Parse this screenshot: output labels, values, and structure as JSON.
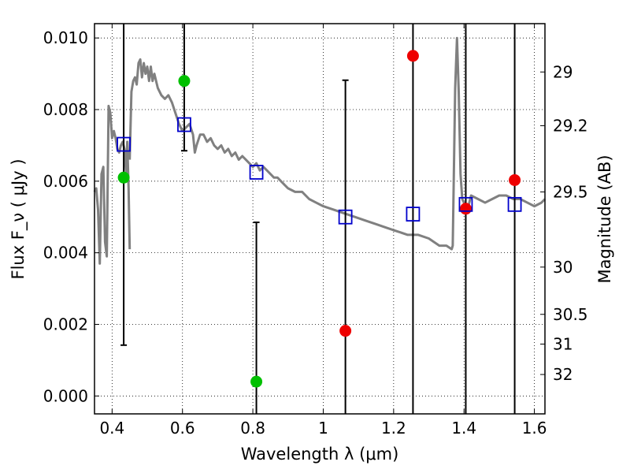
{
  "chart_data": {
    "type": "scatter",
    "xlabel": "Wavelength  λ (μm)",
    "ylabel": "Flux  F_ν  ( μJy )",
    "y2label": "Magnitude (AB)",
    "xlim": [
      0.35,
      1.63
    ],
    "ylim": [
      -0.0005,
      0.0104
    ],
    "grid": true,
    "x_ticks": [
      0.4,
      0.6,
      0.8,
      1.0,
      1.2,
      1.4,
      1.6
    ],
    "x_tick_labels": [
      "0.4",
      "0.6",
      "0.8",
      "1",
      "1.2",
      "1.4",
      "1.6"
    ],
    "y_ticks": [
      0.0,
      0.002,
      0.004,
      0.006,
      0.008,
      0.01
    ],
    "y_tick_labels": [
      "0.000",
      "0.002",
      "0.004",
      "0.006",
      "0.008",
      "0.010"
    ],
    "mag_ticks": [
      {
        "label": "29",
        "flux": 0.00905
      },
      {
        "label": "29.2",
        "flux": 0.00755
      },
      {
        "label": "29.5",
        "flux": 0.0057
      },
      {
        "label": "30",
        "flux": 0.0036
      },
      {
        "label": "30.5",
        "flux": 0.00228
      },
      {
        "label": "31",
        "flux": 0.00145
      },
      {
        "label": "32",
        "flux": 0.0006
      }
    ],
    "template_spectrum": {
      "color": "#808080",
      "segments": [
        [
          [
            0.35,
            0.0057
          ],
          [
            0.355,
            0.0058
          ],
          [
            0.36,
            0.0052
          ],
          [
            0.365,
            0.0037
          ],
          [
            0.37,
            0.0062
          ],
          [
            0.375,
            0.0064
          ],
          [
            0.38,
            0.0043
          ],
          [
            0.385,
            0.0039
          ],
          [
            0.39,
            0.0081
          ],
          [
            0.395,
            0.0079
          ],
          [
            0.4,
            0.0072
          ],
          [
            0.405,
            0.0074
          ],
          [
            0.41,
            0.0072
          ],
          [
            0.415,
            0.0069
          ],
          [
            0.42,
            0.0068
          ],
          [
            0.425,
            0.007
          ],
          [
            0.43,
            0.0071
          ],
          [
            0.435,
            0.0069
          ],
          [
            0.44,
            0.0062
          ],
          [
            0.443,
            0.0071
          ],
          [
            0.447,
            0.0058
          ],
          [
            0.45,
            0.0041
          ]
        ],
        [
          [
            0.45,
            0.0066
          ],
          [
            0.455,
            0.0085
          ],
          [
            0.46,
            0.0088
          ],
          [
            0.465,
            0.0089
          ],
          [
            0.47,
            0.0087
          ],
          [
            0.475,
            0.0093
          ],
          [
            0.48,
            0.0094
          ],
          [
            0.485,
            0.0089
          ],
          [
            0.49,
            0.0093
          ],
          [
            0.495,
            0.009
          ],
          [
            0.5,
            0.0092
          ],
          [
            0.505,
            0.0088
          ],
          [
            0.51,
            0.0092
          ],
          [
            0.515,
            0.0088
          ],
          [
            0.52,
            0.009
          ],
          [
            0.525,
            0.0088
          ],
          [
            0.53,
            0.0086
          ],
          [
            0.54,
            0.0084
          ],
          [
            0.55,
            0.0083
          ],
          [
            0.56,
            0.0084
          ],
          [
            0.57,
            0.0082
          ],
          [
            0.58,
            0.0079
          ],
          [
            0.59,
            0.0076
          ],
          [
            0.6,
            0.0074
          ],
          [
            0.61,
            0.0075
          ],
          [
            0.62,
            0.0076
          ],
          [
            0.63,
            0.0073
          ],
          [
            0.635,
            0.0068
          ],
          [
            0.64,
            0.007
          ],
          [
            0.65,
            0.0073
          ],
          [
            0.66,
            0.0073
          ],
          [
            0.67,
            0.0071
          ],
          [
            0.68,
            0.0072
          ],
          [
            0.69,
            0.007
          ],
          [
            0.7,
            0.0069
          ],
          [
            0.71,
            0.007
          ],
          [
            0.72,
            0.0068
          ],
          [
            0.73,
            0.0069
          ],
          [
            0.74,
            0.0067
          ],
          [
            0.75,
            0.0068
          ],
          [
            0.76,
            0.0066
          ],
          [
            0.77,
            0.0067
          ],
          [
            0.78,
            0.0066
          ],
          [
            0.79,
            0.0065
          ],
          [
            0.8,
            0.0064
          ],
          [
            0.81,
            0.0065
          ],
          [
            0.82,
            0.0063
          ],
          [
            0.83,
            0.0064
          ],
          [
            0.84,
            0.0063
          ],
          [
            0.85,
            0.0062
          ],
          [
            0.86,
            0.0061
          ],
          [
            0.87,
            0.0061
          ],
          [
            0.88,
            0.006
          ],
          [
            0.89,
            0.0059
          ],
          [
            0.9,
            0.0058
          ],
          [
            0.92,
            0.0057
          ],
          [
            0.94,
            0.0057
          ],
          [
            0.96,
            0.0055
          ],
          [
            0.98,
            0.0054
          ],
          [
            1.0,
            0.0053
          ],
          [
            1.03,
            0.0052
          ],
          [
            1.06,
            0.0051
          ],
          [
            1.09,
            0.005
          ],
          [
            1.12,
            0.0049
          ],
          [
            1.15,
            0.0048
          ],
          [
            1.18,
            0.0047
          ],
          [
            1.21,
            0.0046
          ],
          [
            1.24,
            0.0045
          ],
          [
            1.27,
            0.0045
          ],
          [
            1.3,
            0.0044
          ],
          [
            1.33,
            0.0042
          ],
          [
            1.35,
            0.0042
          ],
          [
            1.365,
            0.0041
          ],
          [
            1.368,
            0.0042
          ],
          [
            1.375,
            0.0086
          ],
          [
            1.38,
            0.01
          ],
          [
            1.385,
            0.0085
          ],
          [
            1.39,
            0.0062
          ],
          [
            1.395,
            0.0055
          ],
          [
            1.4,
            0.0054
          ],
          [
            1.41,
            0.0052
          ],
          [
            1.42,
            0.0056
          ],
          [
            1.44,
            0.0055
          ],
          [
            1.46,
            0.0054
          ],
          [
            1.48,
            0.0055
          ],
          [
            1.5,
            0.0056
          ],
          [
            1.52,
            0.0056
          ],
          [
            1.54,
            0.0055
          ],
          [
            1.56,
            0.0055
          ],
          [
            1.58,
            0.0054
          ],
          [
            1.6,
            0.0053
          ],
          [
            1.62,
            0.0054
          ],
          [
            1.63,
            0.0055
          ]
        ]
      ]
    },
    "series": [
      {
        "marker": "circle",
        "color": "#00c000",
        "points": [
          {
            "x": 0.433,
            "y": 0.0061,
            "yerr_low": 0.00142,
            "yerr_high": 0.0104
          },
          {
            "x": 0.605,
            "y": 0.0088,
            "yerr_low": 0.00685,
            "yerr_high": 0.0104
          },
          {
            "x": 0.81,
            "y": 0.0004,
            "yerr_low": -0.0005,
            "yerr_high": 0.00485
          }
        ]
      },
      {
        "marker": "circle",
        "color": "#ee0000",
        "points": [
          {
            "x": 1.063,
            "y": 0.00182,
            "yerr_low": -0.0005,
            "yerr_high": 0.00882
          },
          {
            "x": 1.255,
            "y": 0.0095,
            "yerr_low": -0.0005,
            "yerr_high": 0.0104
          },
          {
            "x": 1.405,
            "y": 0.00523,
            "yerr_low": -0.0005,
            "yerr_high": 0.0104
          },
          {
            "x": 1.544,
            "y": 0.00603,
            "yerr_low": -0.0005,
            "yerr_high": 0.0104
          }
        ]
      },
      {
        "marker": "open-square",
        "color": "#0000cc",
        "points": [
          {
            "x": 0.433,
            "y": 0.00703
          },
          {
            "x": 0.605,
            "y": 0.00758
          },
          {
            "x": 0.81,
            "y": 0.00625
          },
          {
            "x": 1.063,
            "y": 0.005
          },
          {
            "x": 1.255,
            "y": 0.00508
          },
          {
            "x": 1.405,
            "y": 0.00535
          },
          {
            "x": 1.544,
            "y": 0.00535
          }
        ]
      }
    ]
  }
}
